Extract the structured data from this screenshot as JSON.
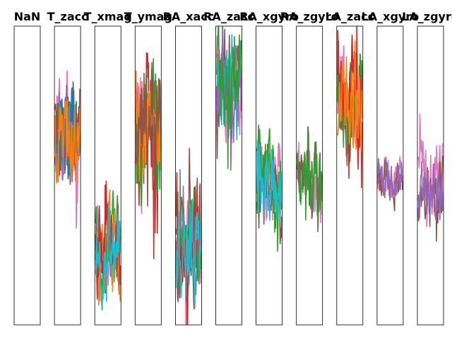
{
  "chart_data": {
    "type": "line",
    "layout": "small-multiples",
    "palette": [
      "#1f77b4",
      "#ff7f0e",
      "#2ca02c",
      "#d62728",
      "#9467bd",
      "#8c564b",
      "#e377c2",
      "#7f7f7f",
      "#bcbd22",
      "#17becf"
    ],
    "panels": [
      {
        "title": "NaN",
        "center": null,
        "amplitude": 0,
        "series": []
      },
      {
        "title": "T_zacc",
        "center": 0.62,
        "amplitude": 0.12,
        "series": [
          "#e377c2",
          "#8c564b",
          "#d62728",
          "#2ca02c",
          "#9467bd",
          "#1f77b4",
          "#ff7f0e"
        ]
      },
      {
        "title": "T_xmag",
        "center": 0.24,
        "amplitude": 0.12,
        "series": [
          "#e377c2",
          "#8c564b",
          "#2ca02c",
          "#ff7f0e",
          "#d62728",
          "#17becf"
        ]
      },
      {
        "title": "T_ymag",
        "center": 0.63,
        "amplitude": 0.18,
        "series": [
          "#e377c2",
          "#d62728",
          "#2ca02c",
          "#ff7f0e",
          "#8c564b"
        ]
      },
      {
        "title": "RA_xacc",
        "center": 0.25,
        "amplitude": 0.14,
        "series": [
          "#e377c2",
          "#8c564b",
          "#7f7f7f",
          "#2ca02c",
          "#d62728",
          "#17becf"
        ]
      },
      {
        "title": "RA_zacc",
        "center": 0.77,
        "amplitude": 0.14,
        "series": [
          "#e377c2",
          "#8c564b",
          "#17becf",
          "#9467bd",
          "#2ca02c"
        ]
      },
      {
        "title": "RA_xgyro",
        "center": 0.46,
        "amplitude": 0.13,
        "series": [
          "#e377c2",
          "#8c564b",
          "#2ca02c",
          "#17becf"
        ]
      },
      {
        "title": "RA_zgyro",
        "center": 0.45,
        "amplitude": 0.11,
        "series": [
          "#e377c2",
          "#8c564b",
          "#2ca02c"
        ]
      },
      {
        "title": "LA_zacc",
        "center": 0.7,
        "amplitude": 0.15,
        "series": [
          "#e377c2",
          "#8c564b",
          "#2ca02c",
          "#d62728",
          "#ff7f0e"
        ]
      },
      {
        "title": "LA_xgyro",
        "center": 0.47,
        "amplitude": 0.06,
        "series": [
          "#e377c2",
          "#8c564b",
          "#9467bd"
        ]
      },
      {
        "title": "LA_zgyro",
        "center": 0.47,
        "amplitude": 0.09,
        "series": [
          "#e377c2",
          "#8c564b",
          "#9467bd"
        ]
      }
    ],
    "xlabel": "",
    "ylabel": "",
    "grid": false,
    "legend": "none"
  }
}
